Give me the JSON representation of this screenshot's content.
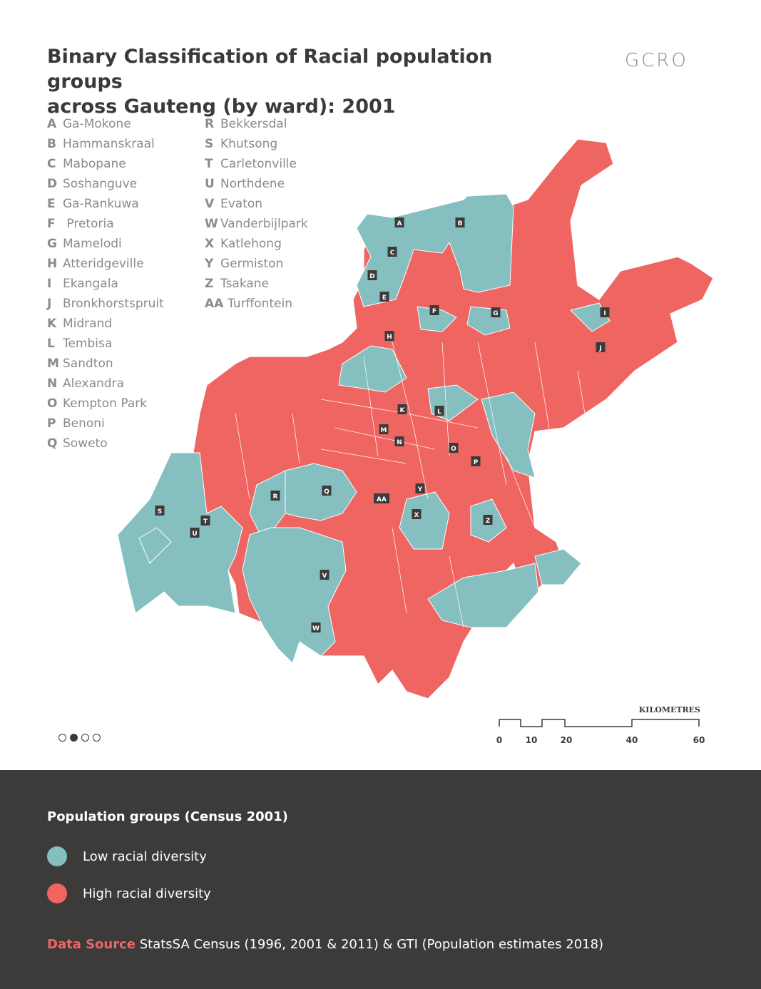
{
  "title_line1": "Binary Classification of Racial population groups",
  "title_line2": "across Gauteng (by ward): 2001",
  "logo": "GCRO",
  "colors": {
    "low": "#85bfc0",
    "high": "#ee6562",
    "footer_bg": "#3c3b3a"
  },
  "places_left": [
    {
      "code": "A",
      "name": "Ga-Mokone"
    },
    {
      "code": "B",
      "name": "Hammanskraal"
    },
    {
      "code": "C",
      "name": "Mabopane"
    },
    {
      "code": "D",
      "name": "Soshanguve"
    },
    {
      "code": "E",
      "name": "Ga-Rankuwa"
    },
    {
      "code": "F",
      "name": " Pretoria"
    },
    {
      "code": "G",
      "name": "Mamelodi"
    },
    {
      "code": "H",
      "name": "Atteridgeville"
    },
    {
      "code": "I",
      "name": "Ekangala"
    },
    {
      "code": "J",
      "name": "Bronkhorstspruit"
    },
    {
      "code": "K",
      "name": "Midrand"
    },
    {
      "code": "L",
      "name": "Tembisa"
    },
    {
      "code": "M",
      "name": "Sandton"
    },
    {
      "code": "N",
      "name": "Alexandra"
    },
    {
      "code": "O",
      "name": "Kempton Park"
    },
    {
      "code": "P",
      "name": "Benoni"
    },
    {
      "code": "Q",
      "name": "Soweto"
    }
  ],
  "places_right": [
    {
      "code": "R",
      "name": "Bekkersdal"
    },
    {
      "code": "S",
      "name": "Khutsong"
    },
    {
      "code": "T",
      "name": "Carletonville"
    },
    {
      "code": "U",
      "name": "Northdene"
    },
    {
      "code": "V",
      "name": "Evaton"
    },
    {
      "code": "W",
      "name": "Vanderbijlpark"
    },
    {
      "code": "X",
      "name": "Katlehong"
    },
    {
      "code": "Y",
      "name": "Germiston"
    },
    {
      "code": "Z",
      "name": "Tsakane"
    },
    {
      "code": "AA",
      "name": "Turffontein"
    }
  ],
  "scale": {
    "title": "KILOMETRES",
    "ticks": [
      "0",
      "10",
      "20",
      "40",
      "60"
    ]
  },
  "legend": {
    "title": "Population groups (Census 2001)",
    "low": "Low racial diversity",
    "high": "High racial diversity"
  },
  "source": {
    "label": "Data Source",
    "text": " StatsSA Census (1996, 2001 & 2011) & GTI (Population estimates 2018)"
  }
}
